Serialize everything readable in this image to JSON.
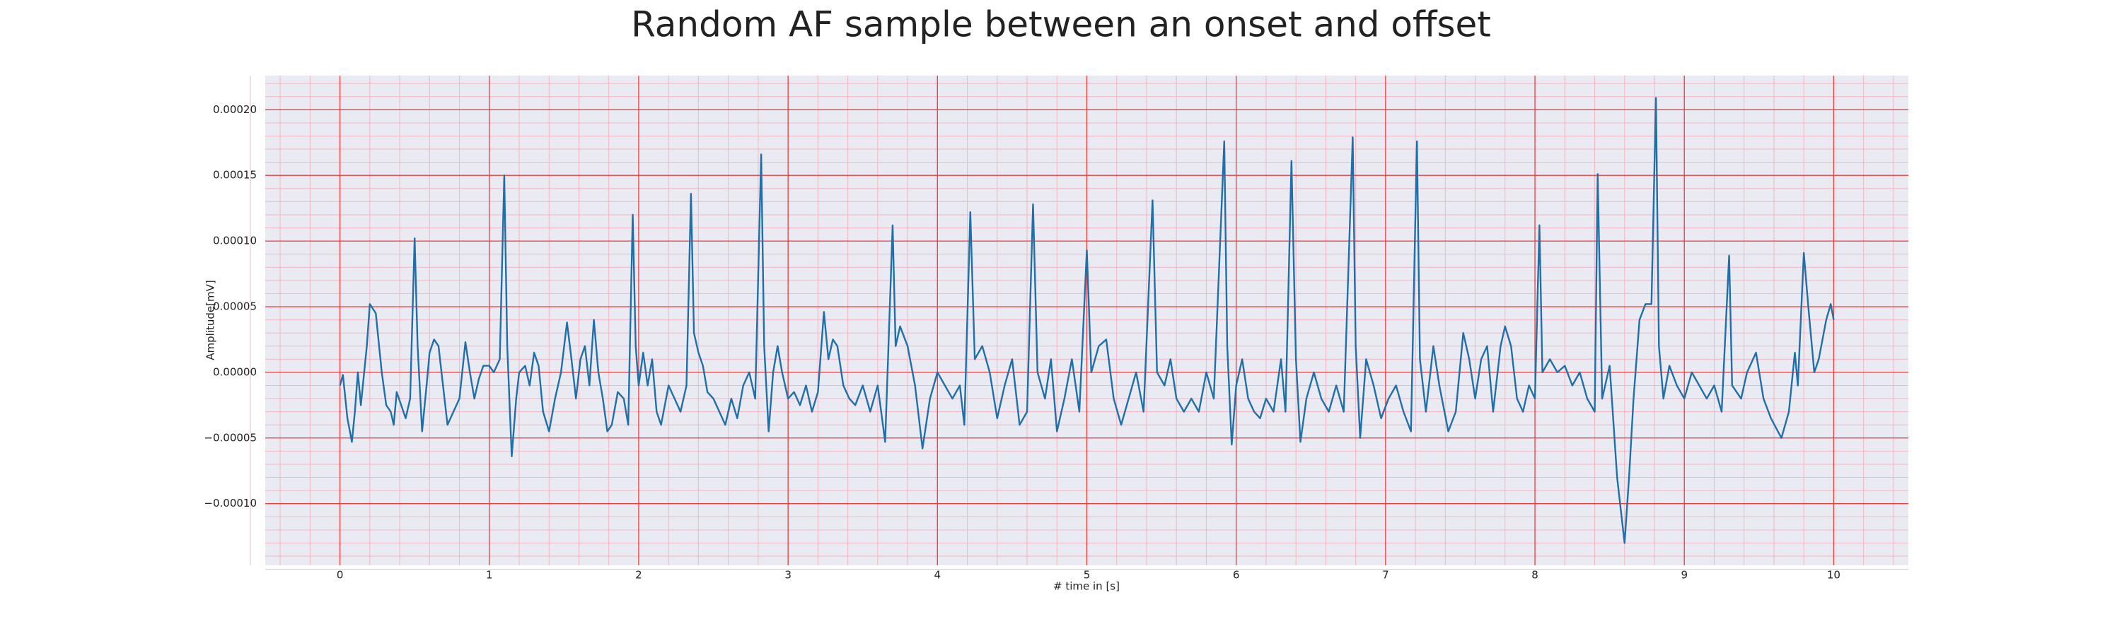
{
  "chart_data": {
    "type": "line",
    "title": "Random AF sample between an onset and offset",
    "xlabel": "# time in [s]",
    "ylabel": "Amplitude[mV]",
    "color": "#1f6fa8",
    "grid": true,
    "minor_grid": true,
    "xlim": [
      -0.5,
      10.5
    ],
    "ylim": [
      -0.000147,
      0.000226
    ],
    "xticks": [
      0,
      1,
      2,
      3,
      4,
      5,
      6,
      7,
      8,
      9,
      10
    ],
    "yticks": [
      {
        "value": -0.0001,
        "label": "−0.00010"
      },
      {
        "value": -5e-05,
        "label": "−0.00005"
      },
      {
        "value": 0,
        "label": "0.00000"
      },
      {
        "value": 5e-05,
        "label": "0.00005"
      },
      {
        "value": 0.0001,
        "label": "0.00010"
      },
      {
        "value": 0.00015,
        "label": "0.00015"
      },
      {
        "value": 0.0002,
        "label": "0.00020"
      }
    ],
    "x": [
      0.0,
      0.02,
      0.05,
      0.08,
      0.1,
      0.12,
      0.14,
      0.18,
      0.2,
      0.24,
      0.28,
      0.31,
      0.34,
      0.36,
      0.38,
      0.41,
      0.44,
      0.47,
      0.5,
      0.52,
      0.55,
      0.58,
      0.6,
      0.63,
      0.66,
      0.69,
      0.72,
      0.76,
      0.8,
      0.84,
      0.87,
      0.9,
      0.93,
      0.96,
      1.0,
      1.03,
      1.07,
      1.1,
      1.12,
      1.15,
      1.18,
      1.2,
      1.24,
      1.27,
      1.3,
      1.33,
      1.36,
      1.4,
      1.44,
      1.48,
      1.52,
      1.55,
      1.58,
      1.61,
      1.64,
      1.67,
      1.7,
      1.73,
      1.76,
      1.79,
      1.82,
      1.86,
      1.9,
      1.93,
      1.96,
      1.98,
      2.0,
      2.03,
      2.06,
      2.09,
      2.12,
      2.15,
      2.2,
      2.24,
      2.28,
      2.32,
      2.35,
      2.37,
      2.4,
      2.43,
      2.46,
      2.5,
      2.54,
      2.58,
      2.62,
      2.66,
      2.7,
      2.74,
      2.78,
      2.82,
      2.84,
      2.87,
      2.9,
      2.93,
      2.96,
      3.0,
      3.04,
      3.08,
      3.12,
      3.16,
      3.2,
      3.24,
      3.27,
      3.3,
      3.33,
      3.37,
      3.41,
      3.45,
      3.5,
      3.55,
      3.6,
      3.65,
      3.7,
      3.72,
      3.75,
      3.8,
      3.85,
      3.9,
      3.95,
      4.0,
      4.05,
      4.1,
      4.15,
      4.18,
      4.22,
      4.25,
      4.3,
      4.35,
      4.4,
      4.45,
      4.5,
      4.55,
      4.6,
      4.64,
      4.67,
      4.72,
      4.76,
      4.8,
      4.85,
      4.9,
      4.95,
      5.0,
      5.03,
      5.08,
      5.13,
      5.18,
      5.23,
      5.28,
      5.33,
      5.38,
      5.44,
      5.47,
      5.52,
      5.56,
      5.6,
      5.65,
      5.7,
      5.75,
      5.8,
      5.85,
      5.92,
      5.94,
      5.97,
      6.0,
      6.04,
      6.08,
      6.12,
      6.16,
      6.2,
      6.25,
      6.3,
      6.33,
      6.37,
      6.4,
      6.43,
      6.47,
      6.52,
      6.57,
      6.62,
      6.67,
      6.72,
      6.78,
      6.8,
      6.83,
      6.87,
      6.92,
      6.97,
      7.02,
      7.07,
      7.12,
      7.17,
      7.21,
      7.23,
      7.27,
      7.32,
      7.36,
      7.42,
      7.47,
      7.52,
      7.56,
      7.6,
      7.64,
      7.68,
      7.72,
      7.77,
      7.8,
      7.84,
      7.88,
      7.92,
      7.96,
      8.0,
      8.03,
      8.05,
      8.1,
      8.15,
      8.2,
      8.25,
      8.3,
      8.35,
      8.4,
      8.42,
      8.45,
      8.5,
      8.55,
      8.6,
      8.63,
      8.66,
      8.7,
      8.74,
      8.78,
      8.81,
      8.83,
      8.86,
      8.9,
      8.95,
      9.0,
      9.05,
      9.1,
      9.15,
      9.2,
      9.25,
      9.3,
      9.32,
      9.38,
      9.42,
      9.48,
      9.53,
      9.58,
      9.65,
      9.7,
      9.74,
      9.76,
      9.8,
      9.83,
      9.87,
      9.9,
      9.95,
      9.98,
      10.0
    ],
    "values": [
      -1e-05,
      -2e-06,
      -3.5e-05,
      -5.3e-05,
      -3e-05,
      0,
      -2.5e-05,
      2e-05,
      5.2e-05,
      4.5e-05,
      0,
      -2.5e-05,
      -3e-05,
      -4e-05,
      -1.5e-05,
      -2.5e-05,
      -3.5e-05,
      -2e-05,
      0.000102,
      2e-05,
      -4.5e-05,
      -1e-05,
      1.5e-05,
      2.5e-05,
      2e-05,
      -1e-05,
      -4e-05,
      -3e-05,
      -2e-05,
      2.3e-05,
      0,
      -2e-05,
      -5e-06,
      5e-06,
      5e-06,
      0,
      1e-05,
      0.00015,
      2e-05,
      -6.4e-05,
      -2e-05,
      0,
      5e-06,
      -1e-05,
      1.5e-05,
      5e-06,
      -3e-05,
      -4.5e-05,
      -2e-05,
      0,
      3.8e-05,
      1e-05,
      -2e-05,
      1e-05,
      2e-05,
      -1e-05,
      4e-05,
      0,
      -2e-05,
      -4.5e-05,
      -4e-05,
      -1.5e-05,
      -2e-05,
      -4e-05,
      0.00012,
      2e-05,
      -1e-05,
      1.5e-05,
      -1e-05,
      1e-05,
      -3e-05,
      -4e-05,
      -1e-05,
      -2e-05,
      -3e-05,
      -1e-05,
      0.000136,
      3e-05,
      1.5e-05,
      5e-06,
      -1.5e-05,
      -2e-05,
      -3e-05,
      -4e-05,
      -2e-05,
      -3.5e-05,
      -1e-05,
      0,
      -2e-05,
      0.000166,
      2e-05,
      -4.5e-05,
      0,
      2e-05,
      0,
      -2e-05,
      -1.5e-05,
      -2.5e-05,
      -1e-05,
      -3e-05,
      -1.5e-05,
      4.6e-05,
      1e-05,
      2.5e-05,
      2e-05,
      -1e-05,
      -2e-05,
      -2.5e-05,
      -1e-05,
      -3e-05,
      -1e-05,
      -5.3e-05,
      0.000112,
      2e-05,
      3.5e-05,
      2e-05,
      -1e-05,
      -5.8e-05,
      -2e-05,
      0,
      -1e-05,
      -2e-05,
      -1e-05,
      -4e-05,
      0.000122,
      1e-05,
      2e-05,
      0,
      -3.5e-05,
      -1e-05,
      1e-05,
      -4e-05,
      -3e-05,
      0.000128,
      0,
      -2e-05,
      1e-05,
      -4.5e-05,
      -2e-05,
      1e-05,
      -3e-05,
      9.3e-05,
      0,
      2e-05,
      2.5e-05,
      -2e-05,
      -4e-05,
      -2e-05,
      0,
      -3e-05,
      0.000131,
      0,
      -1e-05,
      1e-05,
      -2e-05,
      -3e-05,
      -2e-05,
      -3e-05,
      0,
      -2e-05,
      0.000176,
      2e-05,
      -5.5e-05,
      -1e-05,
      1e-05,
      -2e-05,
      -3e-05,
      -3.5e-05,
      -2e-05,
      -3e-05,
      1e-05,
      -3e-05,
      0.000161,
      1e-05,
      -5.3e-05,
      -2e-05,
      0,
      -2e-05,
      -3e-05,
      -1e-05,
      -3e-05,
      0.000179,
      2e-05,
      -5e-05,
      1e-05,
      -1e-05,
      -3.5e-05,
      -2e-05,
      -1e-05,
      -3e-05,
      -4.5e-05,
      0.000176,
      1e-05,
      -3e-05,
      2e-05,
      -1e-05,
      -4.5e-05,
      -3e-05,
      3e-05,
      1e-05,
      -2e-05,
      1e-05,
      2e-05,
      -3e-05,
      2e-05,
      3.5e-05,
      2e-05,
      -2e-05,
      -3e-05,
      -1e-05,
      -2e-05,
      0.000112,
      0,
      1e-05,
      0,
      5e-06,
      -1e-05,
      0,
      -2e-05,
      -3e-05,
      0.000151,
      -2e-05,
      5e-06,
      -8e-05,
      -0.00013,
      -8e-05,
      -2e-05,
      4e-05,
      5.2e-05,
      5.2e-05,
      0.000209,
      2e-05,
      -2e-05,
      5e-06,
      -1e-05,
      -2e-05,
      0,
      -1e-05,
      -2e-05,
      -1e-05,
      -3e-05,
      8.9e-05,
      -1e-05,
      -2e-05,
      0,
      1.5e-05,
      -2e-05,
      -3.5e-05,
      -5e-05,
      -3e-05,
      1.5e-05,
      -1e-05,
      9.1e-05,
      5e-05,
      0,
      1e-05,
      4e-05,
      5.2e-05,
      4e-05
    ]
  }
}
